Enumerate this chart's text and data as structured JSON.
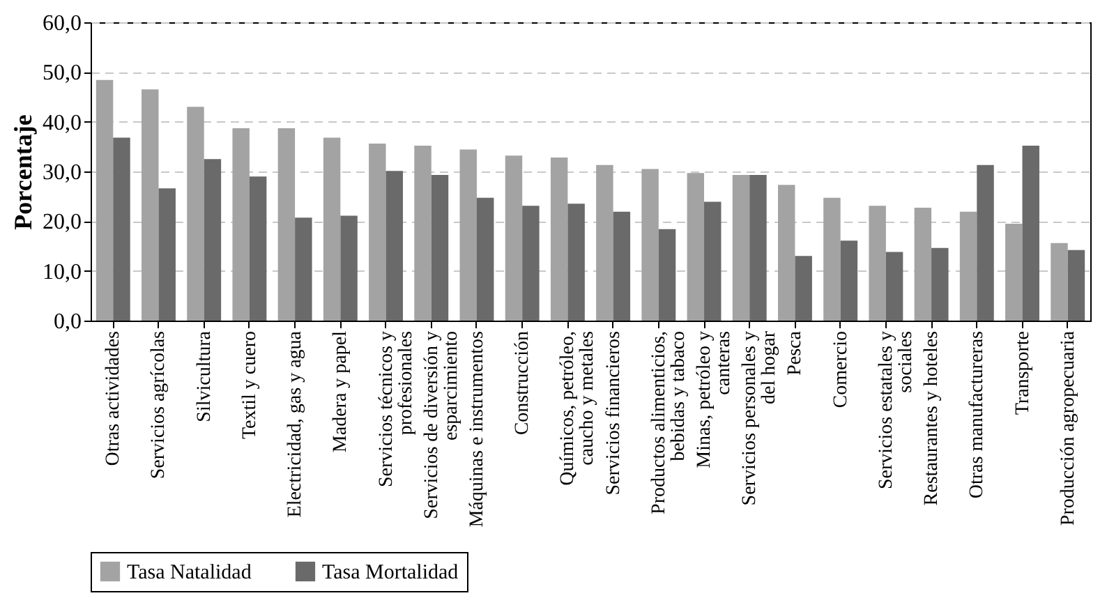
{
  "chart_data": {
    "type": "bar",
    "ylabel": "Porcentaje",
    "categories": [
      "Otras actividades",
      "Servicios agrícolas",
      "Silvicultura",
      "Textil y cuero",
      "Electricidad, gas y agua",
      "Madera y papel",
      "Servicios técnicos y profesionales",
      "Servicios de diversión y esparcimiento",
      "Máquinas e instrumentos",
      "Construcción",
      "Químicos, petróleo, caucho y metales",
      "Servicios financieros",
      "Productos alimenticios, bebidas y tabaco",
      "Minas, petróleo y canteras",
      "Servicios personales y del hogar",
      "Pesca",
      "Comercio",
      "Servicios estatales y sociales",
      "Restaurantes y hoteles",
      "Otras manufactureras",
      "Transporte",
      "Producción agropecuaria"
    ],
    "series": [
      {
        "name": "Tasa Natalidad",
        "color": "#a3a3a3",
        "values": [
          48.4,
          46.5,
          43.0,
          38.7,
          38.7,
          36.8,
          35.6,
          35.2,
          34.4,
          33.2,
          32.8,
          31.3,
          30.5,
          29.7,
          29.3,
          27.3,
          24.7,
          23.1,
          22.7,
          21.9,
          19.5,
          15.6
        ]
      },
      {
        "name": "Tasa Mortalidad",
        "color": "#6a6a6a",
        "values": [
          36.8,
          26.6,
          32.5,
          29.0,
          20.7,
          21.1,
          30.1,
          29.3,
          24.7,
          23.1,
          23.5,
          21.9,
          18.4,
          23.9,
          29.3,
          13.0,
          16.1,
          13.8,
          14.6,
          31.3,
          35.2,
          14.2
        ]
      }
    ],
    "ylim": [
      0,
      60
    ],
    "yticks": [
      {
        "value": 0,
        "label": "0,0"
      },
      {
        "value": 10,
        "label": "10,0"
      },
      {
        "value": 20,
        "label": "20,0"
      },
      {
        "value": 30,
        "label": "30,0"
      },
      {
        "value": 40,
        "label": "40,0"
      },
      {
        "value": 50,
        "label": "50,0"
      },
      {
        "value": 60,
        "label": "60,0"
      }
    ],
    "grid": "y",
    "legend": "bottom"
  }
}
